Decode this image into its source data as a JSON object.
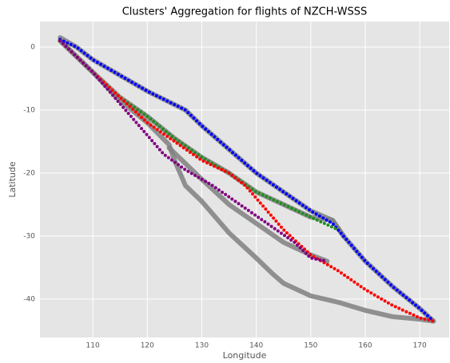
{
  "chart_data": {
    "type": "line",
    "title": "Clusters' Aggregation for flights of NZCH-WSSS",
    "xlabel": "Longitude",
    "ylabel": "Latitude",
    "xlim": [
      100.3,
      175.4
    ],
    "ylim": [
      -46.1,
      4.05
    ],
    "xticks": [
      110,
      120,
      130,
      140,
      150,
      160,
      170
    ],
    "yticks": [
      0,
      -10,
      -20,
      -30,
      -40
    ],
    "grid": true,
    "series": [
      {
        "color": "#808080",
        "style": "thick",
        "x": [
          104,
          107,
          110,
          114,
          120,
          127,
          130,
          132,
          140,
          145,
          150,
          154,
          156,
          160,
          165,
          170,
          172.5
        ],
        "values": [
          1.5,
          0,
          -2,
          -4,
          -7,
          -10,
          -12.5,
          -14,
          -20,
          -23,
          -26,
          -27.5,
          -30,
          -34,
          -38,
          -41.5,
          -43.5
        ]
      },
      {
        "color": "#808080",
        "style": "thick",
        "x": [
          104,
          110,
          115,
          120,
          125,
          130,
          135,
          140,
          145,
          150,
          154,
          156
        ],
        "values": [
          1,
          -4,
          -8,
          -11,
          -14.5,
          -17.5,
          -20,
          -23,
          -25,
          -27,
          -27.5,
          -30
        ]
      },
      {
        "color": "#808080",
        "style": "thick",
        "x": [
          104,
          110,
          115,
          120,
          124,
          125,
          127,
          130,
          135,
          140,
          143,
          145,
          150,
          155,
          160,
          165,
          170,
          172.5
        ],
        "values": [
          1,
          -4,
          -8.5,
          -12,
          -15.5,
          -18,
          -22,
          -24.5,
          -29.5,
          -33.5,
          -36,
          -37.5,
          -39.5,
          -40.5,
          -41.8,
          -42.8,
          -43.2,
          -43.5
        ]
      },
      {
        "color": "#808080",
        "style": "thick",
        "x": [
          124,
          127,
          130,
          135,
          140,
          145,
          150,
          153
        ],
        "values": [
          -16,
          -18.5,
          -21,
          -25,
          -28,
          -31,
          -33,
          -34
        ]
      },
      {
        "color": "#0000ff",
        "style": "dots",
        "x": [
          104,
          107,
          110,
          114,
          120,
          127,
          130,
          132,
          140,
          145,
          150,
          154,
          156,
          160,
          165,
          170,
          172.5
        ],
        "values": [
          1.2,
          0,
          -2,
          -4,
          -7,
          -10,
          -12.5,
          -14,
          -20,
          -23,
          -26,
          -28,
          -30,
          -34,
          -38,
          -41.5,
          -43.5
        ]
      },
      {
        "color": "#228b22",
        "style": "dots",
        "x": [
          104,
          110,
          115,
          120,
          125,
          130,
          135,
          140,
          145,
          150,
          155
        ],
        "values": [
          1,
          -4,
          -8,
          -11,
          -14.5,
          -17.5,
          -20,
          -23,
          -25,
          -27,
          -29
        ]
      },
      {
        "color": "#ff0000",
        "style": "dots",
        "x": [
          104,
          110,
          115,
          120,
          125,
          130,
          135,
          138,
          141,
          145,
          150,
          155,
          160,
          165,
          170,
          172.5
        ],
        "values": [
          1,
          -4,
          -8,
          -12,
          -15,
          -18,
          -20,
          -22,
          -25,
          -29,
          -33,
          -35.5,
          -38.5,
          -41,
          -43,
          -43.5
        ]
      },
      {
        "color": "#800080",
        "style": "dots",
        "x": [
          104,
          110,
          115,
          118,
          123,
          127,
          132,
          137,
          142,
          147,
          150,
          153
        ],
        "values": [
          1,
          -4,
          -9,
          -12,
          -17,
          -19.5,
          -22,
          -25,
          -28,
          -31,
          -33.5,
          -34
        ]
      }
    ]
  }
}
